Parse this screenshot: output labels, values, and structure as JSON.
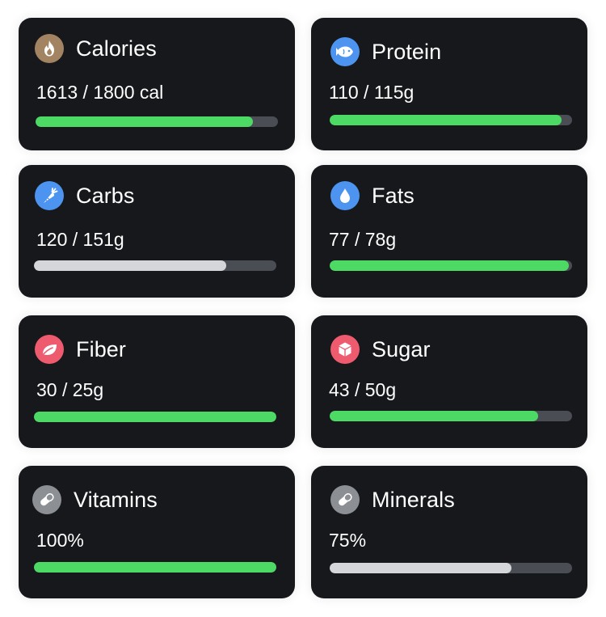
{
  "colors": {
    "card_background": "#16181b",
    "track": "#4a4d53",
    "fill_green": "#4cd964",
    "fill_grey": "#d4d6d9"
  },
  "cards": [
    {
      "name": "calories",
      "title": "Calories",
      "value": "1613 / 1800 cal",
      "progress": 0.8961,
      "fill_color": "#4cd964",
      "icon": "flame-icon",
      "icon_bg": "#a38462"
    },
    {
      "name": "protein",
      "title": "Protein",
      "value": "110 / 115g",
      "progress": 0.9565,
      "fill_color": "#4cd964",
      "icon": "fish-icon",
      "icon_bg": "#4d94f0"
    },
    {
      "name": "carbs",
      "title": "Carbs",
      "value": "120 / 151g",
      "progress": 0.7947,
      "fill_color": "#d4d6d9",
      "icon": "carrot-icon",
      "icon_bg": "#4d94f0"
    },
    {
      "name": "fats",
      "title": "Fats",
      "value": "77 / 78g",
      "progress": 0.9872,
      "fill_color": "#4cd964",
      "icon": "droplet-icon",
      "icon_bg": "#4d94f0"
    },
    {
      "name": "fiber",
      "title": "Fiber",
      "value": "30 / 25g",
      "progress": 1.0,
      "fill_color": "#4cd964",
      "icon": "leaf-icon",
      "icon_bg": "#ee5a6e"
    },
    {
      "name": "sugar",
      "title": "Sugar",
      "value": "43 / 50g",
      "progress": 0.86,
      "fill_color": "#4cd964",
      "icon": "sugar-cube-icon",
      "icon_bg": "#ee5a6e"
    },
    {
      "name": "vitamins",
      "title": "Vitamins",
      "value": "100%",
      "progress": 1.0,
      "fill_color": "#4cd964",
      "icon": "pill-icon",
      "icon_bg": "#8c8f94"
    },
    {
      "name": "minerals",
      "title": "Minerals",
      "value": "75%",
      "progress": 0.75,
      "fill_color": "#d4d6d9",
      "icon": "pill-icon",
      "icon_bg": "#8c8f94"
    }
  ]
}
